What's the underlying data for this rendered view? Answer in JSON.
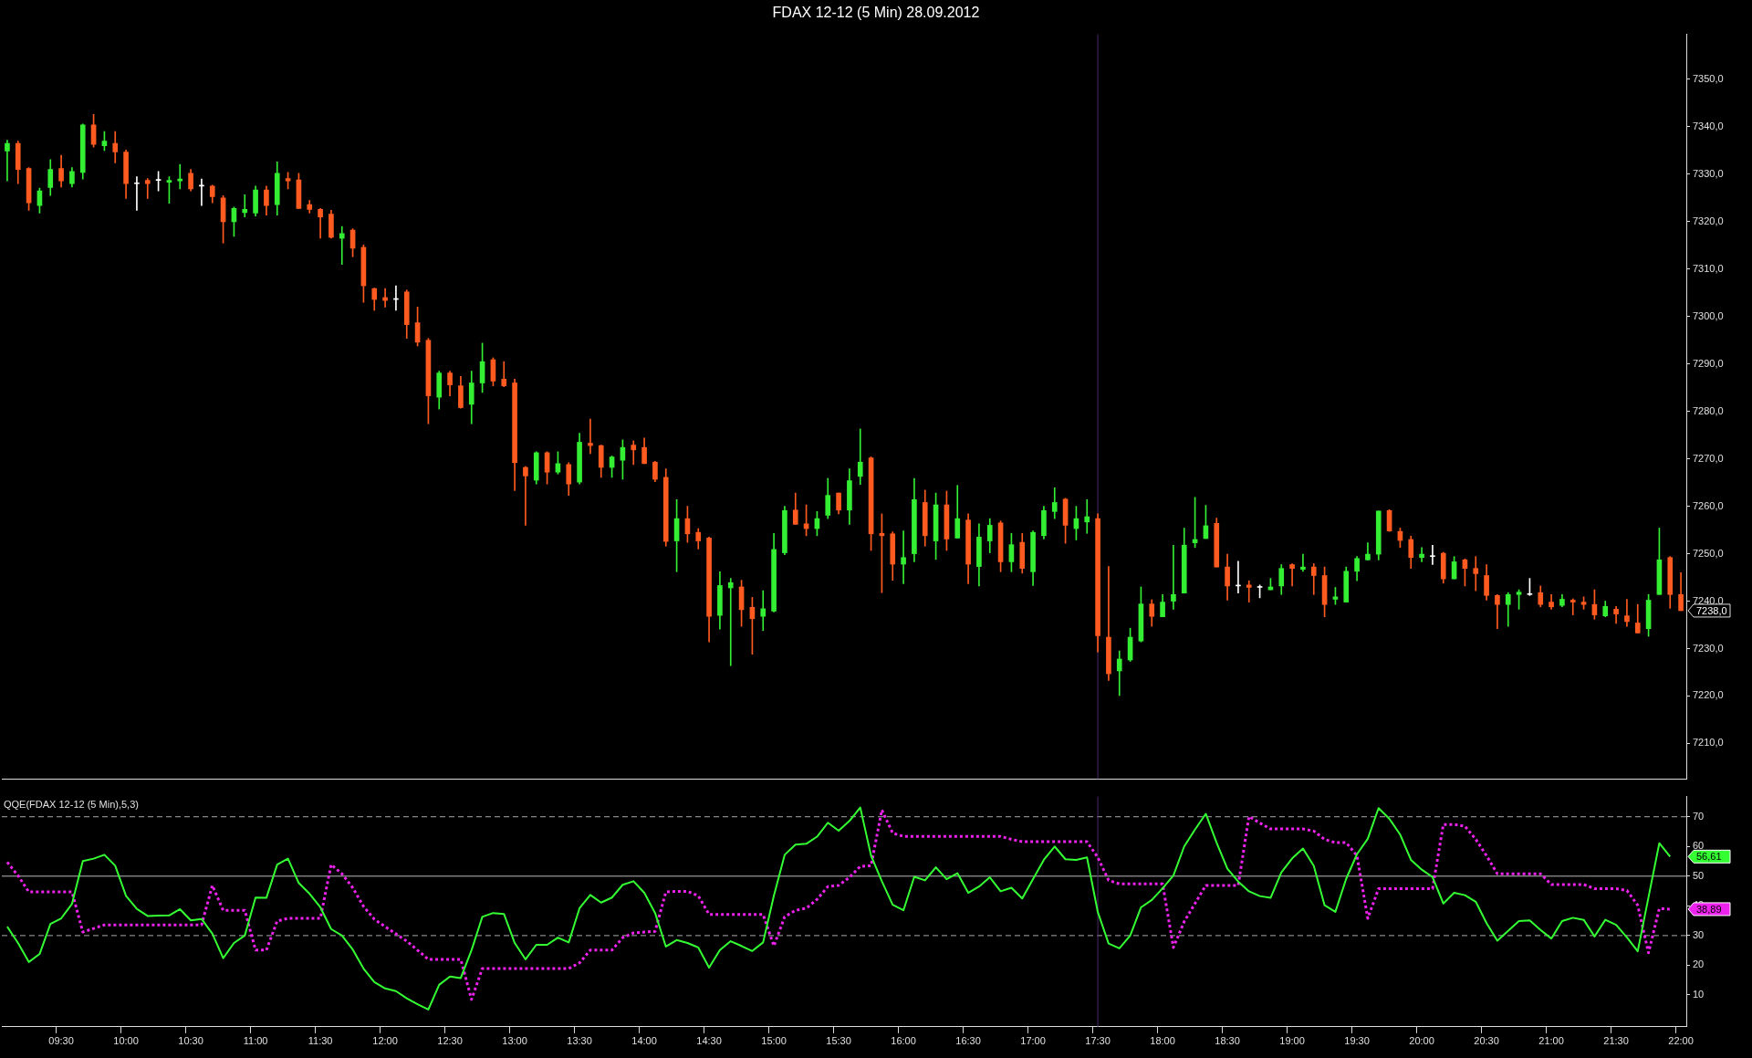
{
  "chart_data": [
    {
      "type": "candlestick",
      "title": "FDAX 12-12 (5 Min)  28.09.2012",
      "categories": [
        null,
        null,
        null,
        null,
        null,
        "09:30",
        null,
        null,
        null,
        null,
        null,
        "10:00",
        null,
        null,
        null,
        null,
        null,
        "10:30",
        null,
        null,
        null,
        null,
        null,
        "11:00",
        null,
        null,
        null,
        null,
        null,
        "11:30",
        null,
        null,
        null,
        null,
        null,
        "12:00",
        null,
        null,
        null,
        null,
        null,
        "12:30",
        null,
        null,
        null,
        null,
        null,
        "13:00",
        null,
        null,
        null,
        null,
        null,
        "13:30",
        null,
        null,
        null,
        null,
        null,
        "14:00",
        null,
        null,
        null,
        null,
        null,
        "14:30",
        null,
        null,
        null,
        null,
        null,
        "15:00",
        null,
        null,
        null,
        null,
        null,
        "15:30",
        null,
        null,
        null,
        null,
        null,
        "16:00",
        null,
        null,
        null,
        null,
        null,
        "16:30",
        null,
        null,
        null,
        null,
        null,
        "17:00",
        null,
        null,
        null,
        null,
        null,
        "17:30",
        null,
        null,
        null,
        null,
        null,
        "18:00",
        null,
        null,
        null,
        null,
        null,
        "18:30",
        null,
        null,
        null,
        null,
        null,
        "19:00",
        null,
        null,
        null,
        null,
        null,
        "19:30",
        null,
        null,
        null,
        null,
        null,
        "20:00",
        null,
        null,
        null,
        null,
        null,
        "20:30",
        null,
        null,
        null,
        null,
        null,
        "21:00",
        null,
        null,
        null,
        null,
        null,
        "21:30",
        null,
        null,
        null,
        null,
        null,
        "22:00"
      ],
      "ohlc": [
        [
          7334.9,
          7337.2,
          7328.6,
          7336.5
        ],
        [
          7336.5,
          7337,
          7328,
          7331
        ],
        [
          7331.2,
          7331.4,
          7322.4,
          7324
        ],
        [
          7323.4,
          7327.1,
          7321.8,
          7326.5
        ],
        [
          7327.2,
          7333.1,
          7325.5,
          7331
        ],
        [
          7331.2,
          7334,
          7327.3,
          7328.6
        ],
        [
          7328,
          7331.4,
          7327.3,
          7330.6
        ],
        [
          7330.4,
          7340.6,
          7329,
          7340.4
        ],
        [
          7340.4,
          7342.6,
          7335.7,
          7336.3
        ],
        [
          7336,
          7339,
          7335,
          7337
        ],
        [
          7336.5,
          7339,
          7332.4,
          7334.7
        ],
        [
          7334.7,
          7335.1,
          7324.9,
          7328
        ],
        [
          7328,
          7329.5,
          7322.4,
          7328
        ],
        [
          7328.7,
          7329.1,
          7324.9,
          7328
        ],
        [
          7328.7,
          7330.6,
          7326.5,
          7328.7
        ],
        [
          7328.3,
          7329.5,
          7323.9,
          7328.7
        ],
        [
          7328.6,
          7332.1,
          7326.9,
          7329
        ],
        [
          7330.2,
          7331,
          7326.5,
          7326.9
        ],
        [
          7327.5,
          7329,
          7323.4,
          7327.5
        ],
        [
          7327.5,
          7327.7,
          7324,
          7325.3
        ],
        [
          7325,
          7325.5,
          7315.5,
          7320
        ],
        [
          7320,
          7323.1,
          7316.9,
          7322.8
        ],
        [
          7321.9,
          7325.7,
          7321,
          7322.6
        ],
        [
          7321.8,
          7327.5,
          7321.2,
          7326.7
        ],
        [
          7326.7,
          7327.5,
          7321.4,
          7323.4
        ],
        [
          7323.6,
          7332.6,
          7321.4,
          7330.2
        ],
        [
          7329.1,
          7330.4,
          7326.9,
          7328.6
        ],
        [
          7328.8,
          7330.2,
          7322.8,
          7322.8
        ],
        [
          7323.6,
          7324.5,
          7321.8,
          7322.6
        ],
        [
          7322.6,
          7322.8,
          7316.5,
          7321
        ],
        [
          7321.6,
          7322.4,
          7316.5,
          7316.7
        ],
        [
          7316.5,
          7319,
          7311,
          7317.5
        ],
        [
          7318.2,
          7318.5,
          7312.6,
          7314.4
        ],
        [
          7314.6,
          7315.1,
          7303,
          7306.5
        ],
        [
          7305.9,
          7306,
          7301.3,
          7303.6
        ],
        [
          7304,
          7305.9,
          7302,
          7303.4
        ],
        [
          7303.6,
          7306.5,
          7301.3,
          7303.6
        ],
        [
          7305.2,
          7305.6,
          7295.4,
          7298.3
        ],
        [
          7298.7,
          7302,
          7293.8,
          7294.6
        ],
        [
          7295,
          7295.4,
          7277.4,
          7283.3
        ],
        [
          7283,
          7288.5,
          7280.5,
          7288.1
        ],
        [
          7288.1,
          7288.5,
          7283.3,
          7285.6
        ],
        [
          7285.4,
          7287.4,
          7280.7,
          7280.8
        ],
        [
          7281.5,
          7288.5,
          7277.4,
          7286
        ],
        [
          7286,
          7294.4,
          7284,
          7290.5
        ],
        [
          7290.9,
          7291.3,
          7285.4,
          7286.4
        ],
        [
          7286.8,
          7290.5,
          7285.2,
          7285.4
        ],
        [
          7286,
          7286.8,
          7263.3,
          7269.2
        ],
        [
          7268.2,
          7268.4,
          7256,
          7266.4
        ],
        [
          7265.5,
          7271.5,
          7264.7,
          7271.3
        ],
        [
          7271.3,
          7271.5,
          7264.7,
          7267.2
        ],
        [
          7267.2,
          7271.5,
          7266.8,
          7269
        ],
        [
          7268.8,
          7269.2,
          7262.3,
          7264.7
        ],
        [
          7265.1,
          7275.4,
          7264.7,
          7273.5
        ],
        [
          7273.3,
          7278.4,
          7271.1,
          7272.8
        ],
        [
          7272.8,
          7272.9,
          7266.1,
          7268.2
        ],
        [
          7268.2,
          7270.6,
          7266.1,
          7270.4
        ],
        [
          7269.7,
          7274,
          7265.7,
          7272.4
        ],
        [
          7272.9,
          7273.8,
          7268.8,
          7271.9
        ],
        [
          7272.4,
          7274.4,
          7269,
          7269
        ],
        [
          7269.3,
          7269.5,
          7265.2,
          7265.7
        ],
        [
          7266.1,
          7267.9,
          7251.6,
          7252.6
        ],
        [
          7252.7,
          7261.4,
          7246.2,
          7257.4
        ],
        [
          7257.4,
          7260,
          7252.4,
          7254.2
        ],
        [
          7254.5,
          7255.3,
          7251,
          7252.7
        ],
        [
          7253.3,
          7253.5,
          7231.4,
          7236.8
        ],
        [
          7237,
          7246.2,
          7234.1,
          7243.3
        ],
        [
          7242.8,
          7244.8,
          7226.4,
          7243.9
        ],
        [
          7243,
          7244.4,
          7234.7,
          7238.2
        ],
        [
          7238.7,
          7240.8,
          7228.8,
          7236.3
        ],
        [
          7236.8,
          7242.2,
          7233.8,
          7238.4
        ],
        [
          7237.9,
          7254.3,
          7237.7,
          7250.9
        ],
        [
          7250.2,
          7260,
          7249.8,
          7259.1
        ],
        [
          7259.2,
          7262.8,
          7256.2,
          7256.2
        ],
        [
          7256.3,
          7260.3,
          7253.8,
          7255.3
        ],
        [
          7255.3,
          7258.9,
          7253.8,
          7257.4
        ],
        [
          7258.1,
          7265.9,
          7257.4,
          7262.3
        ],
        [
          7262.8,
          7262.8,
          7258.4,
          7259.2
        ],
        [
          7259.2,
          7267.9,
          7256.2,
          7265.4
        ],
        [
          7266.3,
          7276.3,
          7264.6,
          7269.3
        ],
        [
          7270.2,
          7270.4,
          7250.7,
          7254.2
        ],
        [
          7254.3,
          7258.4,
          7241.8,
          7253.8
        ],
        [
          7254.2,
          7254.6,
          7244.4,
          7247.8
        ],
        [
          7247.8,
          7254.8,
          7243.7,
          7249.2
        ],
        [
          7250,
          7265.9,
          7248.3,
          7261.4
        ],
        [
          7260.8,
          7263.4,
          7251.6,
          7253.8
        ],
        [
          7252.7,
          7262.8,
          7248.8,
          7260.3
        ],
        [
          7260.3,
          7263.2,
          7250.7,
          7253.1
        ],
        [
          7253.3,
          7264.4,
          7253.3,
          7257.4
        ],
        [
          7257.1,
          7258.4,
          7243.7,
          7247.8
        ],
        [
          7247.3,
          7256.3,
          7243.2,
          7253.5
        ],
        [
          7252.7,
          7257.4,
          7250.2,
          7256
        ],
        [
          7256.5,
          7256.9,
          7246.2,
          7248.3
        ],
        [
          7248.3,
          7254.3,
          7246.2,
          7251.9
        ],
        [
          7252.4,
          7254.3,
          7245.9,
          7246.9
        ],
        [
          7246.2,
          7254.8,
          7243.3,
          7254.5
        ],
        [
          7253.8,
          7260,
          7253.1,
          7259.1
        ],
        [
          7258.9,
          7263.9,
          7257.4,
          7260.8
        ],
        [
          7261.5,
          7261.7,
          7252.2,
          7256
        ],
        [
          7255.3,
          7260,
          7252.9,
          7257.4
        ],
        [
          7256.7,
          7261.4,
          7254.3,
          7257.8
        ],
        [
          7257.4,
          7258.4,
          7229.3,
          7232.7
        ],
        [
          7232.4,
          7247.3,
          7223.3,
          7224.7
        ],
        [
          7225.3,
          7229.5,
          7220.1,
          7227.8
        ],
        [
          7227.6,
          7234.3,
          7227.3,
          7232.4
        ],
        [
          7231.6,
          7243,
          7231.4,
          7239.4
        ],
        [
          7239.4,
          7240.3,
          7234.7,
          7236.8
        ],
        [
          7236.7,
          7241.4,
          7236.7,
          7239.8
        ],
        [
          7240,
          7251.8,
          7238.3,
          7241.4
        ],
        [
          7241.7,
          7255.4,
          7241.7,
          7251.8
        ],
        [
          7252.3,
          7261.9,
          7251.3,
          7253
        ],
        [
          7253.2,
          7260.2,
          7253.2,
          7255.9
        ],
        [
          7256.4,
          7257.5,
          7247.2,
          7247.2
        ],
        [
          7247.2,
          7249.9,
          7240.2,
          7243.2
        ],
        [
          7243.2,
          7248.4,
          7241.7,
          7243.2
        ],
        [
          7243.4,
          7244.3,
          7239.8,
          7242.9
        ],
        [
          7242.9,
          7243.4,
          7240.7,
          7242.9
        ],
        [
          7242.4,
          7244.8,
          7242.4,
          7243
        ],
        [
          7243.2,
          7247.7,
          7241.4,
          7246.9
        ],
        [
          7247.7,
          7247.9,
          7243.2,
          7246.9
        ],
        [
          7246.7,
          7249.9,
          7246.3,
          7247.2
        ],
        [
          7247.2,
          7247.9,
          7241.4,
          7245.4
        ],
        [
          7245.4,
          7247.2,
          7236.7,
          7239.3
        ],
        [
          7240.4,
          7242.9,
          7239.3,
          7240.9
        ],
        [
          7239.8,
          7247.2,
          7239.8,
          7246.3
        ],
        [
          7246.3,
          7249.4,
          7244.3,
          7249
        ],
        [
          7248.7,
          7252.3,
          7248.7,
          7249.9
        ],
        [
          7249.9,
          7259,
          7248.7,
          7259
        ],
        [
          7259.1,
          7259.3,
          7254.7,
          7254.8
        ],
        [
          7254.7,
          7255.4,
          7251.3,
          7252.8
        ],
        [
          7253,
          7253.7,
          7246.9,
          7249.2
        ],
        [
          7249.2,
          7251.3,
          7248.3,
          7249.9
        ],
        [
          7249.4,
          7251.8,
          7247.7,
          7249.4
        ],
        [
          7250.1,
          7250.3,
          7243.8,
          7244.7
        ],
        [
          7244.7,
          7249.4,
          7244.7,
          7248.3
        ],
        [
          7248.7,
          7248.9,
          7243.2,
          7246.9
        ],
        [
          7246.9,
          7249.4,
          7242.2,
          7245.8
        ],
        [
          7245.4,
          7247.7,
          7240.2,
          7241.2
        ],
        [
          7241.2,
          7241.4,
          7234.2,
          7239.3
        ],
        [
          7239.3,
          7241.8,
          7234.7,
          7241.4
        ],
        [
          7241.4,
          7242.4,
          7238.3,
          7241.9
        ],
        [
          7241.4,
          7244.8,
          7241.2,
          7241.4
        ],
        [
          7241.8,
          7243.2,
          7238.8,
          7239.3
        ],
        [
          7239.8,
          7241.4,
          7238.3,
          7238.8
        ],
        [
          7239.1,
          7241.4,
          7238.8,
          7240.4
        ],
        [
          7240.2,
          7240.5,
          7237.1,
          7239.8
        ],
        [
          7239.8,
          7240.9,
          7238.3,
          7239.3
        ],
        [
          7239.3,
          7242.4,
          7236.2,
          7237.1
        ],
        [
          7236.9,
          7240,
          7236.7,
          7238.9
        ],
        [
          7238.3,
          7238.9,
          7235.3,
          7237.3
        ],
        [
          7236.9,
          7240.4,
          7234.7,
          7235.7
        ],
        [
          7235.4,
          7239.3,
          7233.3,
          7233.3
        ],
        [
          7234.2,
          7241.4,
          7232.6,
          7240.2
        ],
        [
          7241.4,
          7255.4,
          7241.4,
          7248.7
        ],
        [
          7249.2,
          7249.4,
          7238.5,
          7241.4
        ],
        [
          7241.4,
          7246,
          7238,
          7238
        ]
      ],
      "colors": [
        "#33ee33",
        "#ff5a1f",
        "#ff5a1f",
        "#33ee33",
        "#33ee33",
        "#ff5a1f",
        "#33ee33",
        "#33ee33",
        "#ff5a1f",
        "#33ee33",
        "#ff5a1f",
        "#ff5a1f",
        "#ffffff",
        "#ff5a1f",
        "#ffffff",
        "#33ee33",
        "#33ee33",
        "#ff5a1f",
        "#ffffff",
        "#ff5a1f",
        "#ff5a1f",
        "#33ee33",
        "#33ee33",
        "#33ee33",
        "#ff5a1f",
        "#33ee33",
        "#ff5a1f",
        "#ff5a1f",
        "#ff5a1f",
        "#ff5a1f",
        "#ff5a1f",
        "#33ee33",
        "#ff5a1f",
        "#ff5a1f",
        "#ff5a1f",
        "#ff5a1f",
        "#ffffff",
        "#ff5a1f",
        "#ff5a1f",
        "#ff5a1f",
        "#33ee33",
        "#ff5a1f",
        "#ff5a1f",
        "#33ee33",
        "#33ee33",
        "#ff5a1f",
        "#ff5a1f",
        "#ff5a1f",
        "#ff5a1f",
        "#33ee33",
        "#ff5a1f",
        "#33ee33",
        "#ff5a1f",
        "#33ee33",
        "#ff5a1f",
        "#ff5a1f",
        "#33ee33",
        "#33ee33",
        "#ff5a1f",
        "#ff5a1f",
        "#ff5a1f",
        "#ff5a1f",
        "#33ee33",
        "#ff5a1f",
        "#ff5a1f",
        "#ff5a1f",
        "#33ee33",
        "#33ee33",
        "#ff5a1f",
        "#ff5a1f",
        "#33ee33",
        "#33ee33",
        "#33ee33",
        "#ff5a1f",
        "#ff5a1f",
        "#33ee33",
        "#33ee33",
        "#ff5a1f",
        "#33ee33",
        "#33ee33",
        "#ff5a1f",
        "#ff5a1f",
        "#ff5a1f",
        "#33ee33",
        "#33ee33",
        "#ff5a1f",
        "#33ee33",
        "#ff5a1f",
        "#33ee33",
        "#ff5a1f",
        "#33ee33",
        "#33ee33",
        "#ff5a1f",
        "#33ee33",
        "#ff5a1f",
        "#33ee33",
        "#33ee33",
        "#33ee33",
        "#ff5a1f",
        "#33ee33",
        "#33ee33",
        "#ff5a1f",
        "#ff5a1f",
        "#33ee33",
        "#33ee33",
        "#33ee33",
        "#ff5a1f",
        "#33ee33",
        "#33ee33",
        "#33ee33",
        "#33ee33",
        "#33ee33",
        "#ff5a1f",
        "#ff5a1f",
        "#ffffff",
        "#ff5a1f",
        "#ffffff",
        "#33ee33",
        "#33ee33",
        "#ff5a1f",
        "#33ee33",
        "#ff5a1f",
        "#ff5a1f",
        "#33ee33",
        "#33ee33",
        "#33ee33",
        "#33ee33",
        "#33ee33",
        "#ff5a1f",
        "#ff5a1f",
        "#ff5a1f",
        "#33ee33",
        "#ffffff",
        "#ff5a1f",
        "#33ee33",
        "#ff5a1f",
        "#ff5a1f",
        "#ff5a1f",
        "#ff5a1f",
        "#33ee33",
        "#33ee33",
        "#ffffff",
        "#ff5a1f",
        "#ff5a1f",
        "#33ee33",
        "#ff5a1f",
        "#ff5a1f",
        "#ff5a1f",
        "#33ee33",
        "#ff5a1f",
        "#ff5a1f",
        "#ff5a1f",
        "#33ee33",
        "#33ee33",
        "#ff5a1f",
        "#ff5a1f"
      ],
      "ylim": [
        7202.5,
        7359.5
      ],
      "yticks": [
        {
          "value": 7210,
          "label": "7210,0"
        },
        {
          "value": 7220,
          "label": "7220,0"
        },
        {
          "value": 7230,
          "label": "7230,0"
        },
        {
          "value": 7240,
          "label": "7240,0"
        },
        {
          "value": 7250,
          "label": "7250,0"
        },
        {
          "value": 7260,
          "label": "7260,0"
        },
        {
          "value": 7270,
          "label": "7270,0"
        },
        {
          "value": 7280,
          "label": "7280,0"
        },
        {
          "value": 7290,
          "label": "7290,0"
        },
        {
          "value": 7300,
          "label": "7300,0"
        },
        {
          "value": 7310,
          "label": "7310,0"
        },
        {
          "value": 7320,
          "label": "7320,0"
        },
        {
          "value": 7330,
          "label": "7330,0"
        },
        {
          "value": 7340,
          "label": "7340,0"
        },
        {
          "value": 7350,
          "label": "7350,0"
        }
      ],
      "ref_lines": [
        {
          "axis": "x",
          "value": "17:30",
          "color": "#4a2a6a"
        }
      ],
      "annotations": [
        "7238,0"
      ],
      "tick_labels": "y"
    },
    {
      "type": "line",
      "title": "QQE(FDAX 12-12 (5 Min),5,3)",
      "categories": [
        null,
        null,
        null,
        null,
        null,
        "09:30",
        null,
        null,
        null,
        null,
        null,
        "10:00",
        null,
        null,
        null,
        null,
        null,
        "10:30",
        null,
        null,
        null,
        null,
        null,
        "11:00",
        null,
        null,
        null,
        null,
        null,
        "11:30",
        null,
        null,
        null,
        null,
        null,
        "12:00",
        null,
        null,
        null,
        null,
        null,
        "12:30",
        null,
        null,
        null,
        null,
        null,
        "13:00",
        null,
        null,
        null,
        null,
        null,
        "13:30",
        null,
        null,
        null,
        null,
        null,
        "14:00",
        null,
        null,
        null,
        null,
        null,
        "14:30",
        null,
        null,
        null,
        null,
        null,
        "15:00",
        null,
        null,
        null,
        null,
        null,
        "15:30",
        null,
        null,
        null,
        null,
        null,
        "16:00",
        null,
        null,
        null,
        null,
        null,
        "16:30",
        null,
        null,
        null,
        null,
        null,
        "17:00",
        null,
        null,
        null,
        null,
        null,
        "17:30",
        null,
        null,
        null,
        null,
        null,
        "18:00",
        null,
        null,
        null,
        null,
        null,
        "18:30",
        null,
        null,
        null,
        null,
        null,
        "19:00",
        null,
        null,
        null,
        null,
        null,
        "19:30",
        null,
        null,
        null,
        null,
        null,
        "20:00",
        null,
        null,
        null,
        null,
        null,
        "20:30",
        null,
        null,
        null,
        null,
        null,
        "21:00",
        null,
        null,
        null,
        null,
        null,
        "21:30",
        null,
        null,
        null,
        null,
        null,
        "22:00"
      ],
      "series": [
        {
          "color": "#33ff33",
          "line_style": "solid",
          "values": [
            33.0,
            27.5,
            21.1,
            23.8,
            33.9,
            35.8,
            40.7,
            55.1,
            55.9,
            57.2,
            53.5,
            43.4,
            39.0,
            36.6,
            36.7,
            36.8,
            38.9,
            35.1,
            35.6,
            30.6,
            22.4,
            27.5,
            30.0,
            42.8,
            42.7,
            53.9,
            55.9,
            47.7,
            44.1,
            39.5,
            32.2,
            30.0,
            25.3,
            18.9,
            14.3,
            12.2,
            11.3,
            8.9,
            6.9,
            5.1,
            13.4,
            16.2,
            15.7,
            25.1,
            36.3,
            37.6,
            37.3,
            27.5,
            22.0,
            26.9,
            26.9,
            29.3,
            27.7,
            39.2,
            43.7,
            41.1,
            42.8,
            47.1,
            48.3,
            44.4,
            37.6,
            26.3,
            28.5,
            27.5,
            26.0,
            19.2,
            25.1,
            28.1,
            26.5,
            24.8,
            27.7,
            43.4,
            57.2,
            60.6,
            60.9,
            63.3,
            68.0,
            65.3,
            68.6,
            73.1,
            56.9,
            48.3,
            40.4,
            38.5,
            49.8,
            48.6,
            53.0,
            49.0,
            51.0,
            44.4,
            46.5,
            49.6,
            44.9,
            46.1,
            42.5,
            49.0,
            55.5,
            60.0,
            55.7,
            55.5,
            56.3,
            37.9,
            27.3,
            25.7,
            30.0,
            39.5,
            42.0,
            45.9,
            50.2,
            60.0,
            65.7,
            71.0,
            61.3,
            52.5,
            48.2,
            44.9,
            43.3,
            42.7,
            51.3,
            56.0,
            59.3,
            53.5,
            40.2,
            38.0,
            49.1,
            57.4,
            62.6,
            72.9,
            69.3,
            64.0,
            55.5,
            52.2,
            49.7,
            40.8,
            44.4,
            43.6,
            41.4,
            34.2,
            28.3,
            31.6,
            34.9,
            35.1,
            31.9,
            29.0,
            34.9,
            36.0,
            35.3,
            29.7,
            35.3,
            33.6,
            29.4,
            24.7,
            42.9,
            61.1,
            56.6,
            null
          ]
        },
        {
          "color": "#ee22ee",
          "line_style": "dotted",
          "values": [
            54.7,
            50.2,
            44.7,
            44.7,
            44.7,
            44.7,
            44.7,
            31.2,
            32.4,
            33.6,
            33.6,
            33.6,
            33.6,
            33.6,
            33.6,
            33.6,
            33.6,
            33.6,
            33.6,
            46.9,
            38.5,
            38.5,
            38.5,
            25.1,
            25.1,
            34.9,
            35.8,
            35.8,
            35.8,
            35.8,
            53.9,
            50.8,
            46.1,
            39.8,
            35.5,
            33.0,
            30.6,
            28.1,
            25.1,
            22.0,
            22.0,
            22.0,
            22.0,
            8.5,
            18.9,
            18.9,
            18.9,
            18.9,
            18.9,
            18.9,
            18.9,
            18.9,
            18.9,
            20.8,
            25.1,
            25.1,
            25.1,
            29.3,
            30.9,
            31.2,
            31.4,
            44.7,
            44.9,
            44.9,
            43.4,
            37.1,
            37.1,
            37.1,
            37.1,
            37.1,
            37.1,
            26.5,
            36.3,
            38.5,
            39.2,
            42.2,
            46.5,
            46.9,
            49.6,
            53.3,
            53.5,
            72.3,
            64.5,
            63.4,
            63.4,
            63.4,
            63.4,
            63.4,
            63.4,
            63.4,
            63.4,
            63.4,
            63.4,
            62.4,
            61.6,
            61.6,
            61.6,
            61.6,
            61.6,
            61.6,
            61.6,
            56.3,
            48.6,
            47.4,
            47.4,
            47.4,
            47.4,
            47.4,
            26.0,
            34.7,
            40.8,
            46.9,
            46.9,
            46.9,
            46.9,
            70.1,
            67.9,
            65.9,
            65.9,
            65.9,
            65.9,
            65.2,
            62.4,
            61.3,
            61.3,
            56.9,
            35.8,
            45.8,
            45.8,
            45.8,
            45.8,
            45.8,
            45.8,
            67.4,
            67.4,
            66.8,
            62.4,
            56.9,
            50.8,
            50.8,
            50.8,
            50.8,
            50.8,
            47.2,
            47.2,
            47.2,
            47.2,
            45.8,
            45.8,
            45.8,
            45.2,
            40.2,
            24.2,
            39.1,
            38.9,
            null
          ]
        }
      ],
      "marker": "none",
      "ylim": [
        -0.7,
        76.8
      ],
      "yticks": [
        10,
        20,
        30,
        40,
        50,
        60,
        70
      ],
      "ref_lines": [
        {
          "axis": "y",
          "value": 30,
          "color": "#aaaaaa",
          "line_style": "dashed"
        },
        {
          "axis": "y",
          "value": 50,
          "color": "#bbbbbb",
          "line_style": "solid"
        },
        {
          "axis": "y",
          "value": 70,
          "color": "#aaaaaa",
          "line_style": "dashed"
        },
        {
          "axis": "x",
          "value": "17:30",
          "color": "#4a2a6a"
        }
      ],
      "annotations": [
        "56,61",
        "38,89"
      ]
    }
  ]
}
